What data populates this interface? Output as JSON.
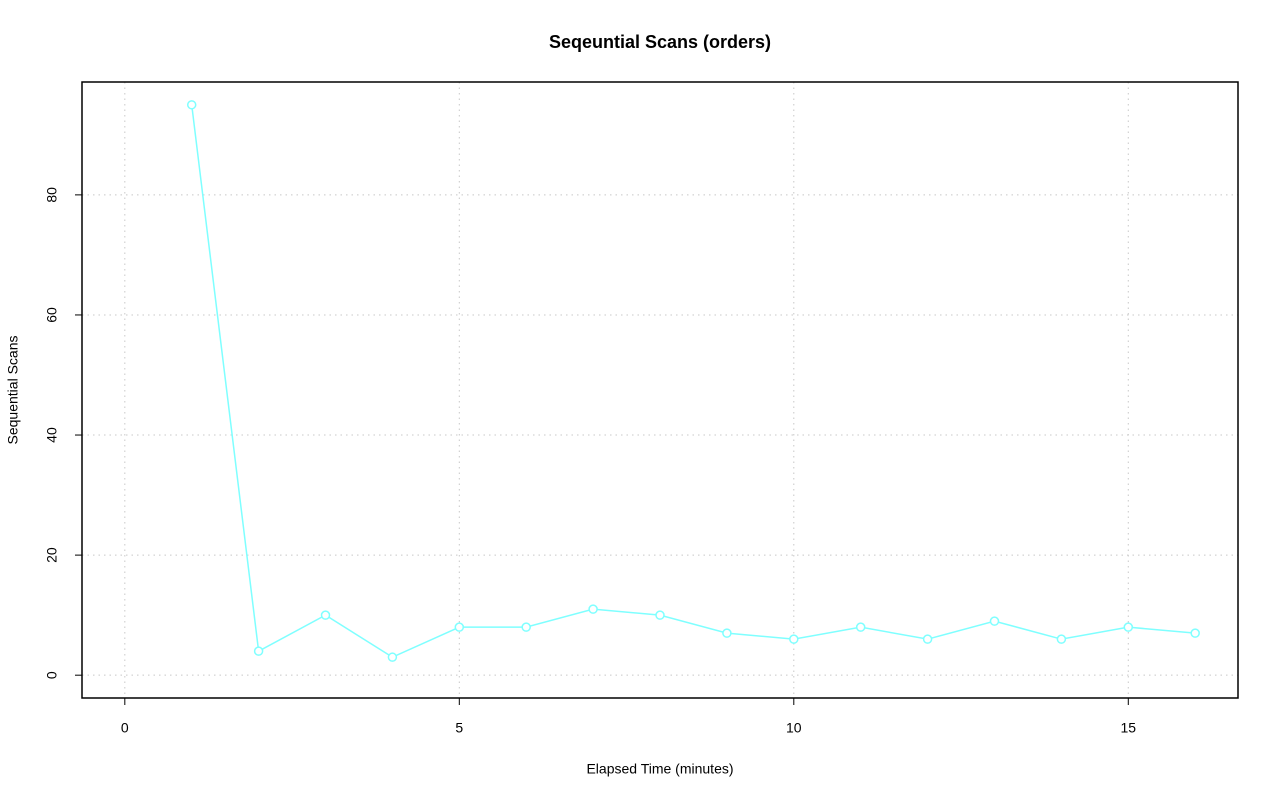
{
  "chart_data": {
    "type": "line",
    "title": "Seqeuntial Scans (orders)",
    "x_label": "Elapsed Time (minutes)",
    "y_label": "Sequential Scans",
    "x": [
      1,
      2,
      3,
      4,
      5,
      6,
      7,
      8,
      9,
      10,
      11,
      12,
      13,
      14,
      15,
      16
    ],
    "series": [
      {
        "name": "orders",
        "color": "#7fffff",
        "values": [
          95,
          4,
          10,
          3,
          8,
          8,
          11,
          10,
          7,
          6,
          8,
          6,
          9,
          6,
          8,
          7
        ]
      }
    ],
    "xlim": [
      -0.64,
      16.64
    ],
    "xticks": [
      0,
      5,
      10,
      15
    ],
    "ylim": [
      -3.8,
      98.8
    ],
    "yticks": [
      0,
      20,
      40,
      60,
      80
    ],
    "grid": true
  }
}
